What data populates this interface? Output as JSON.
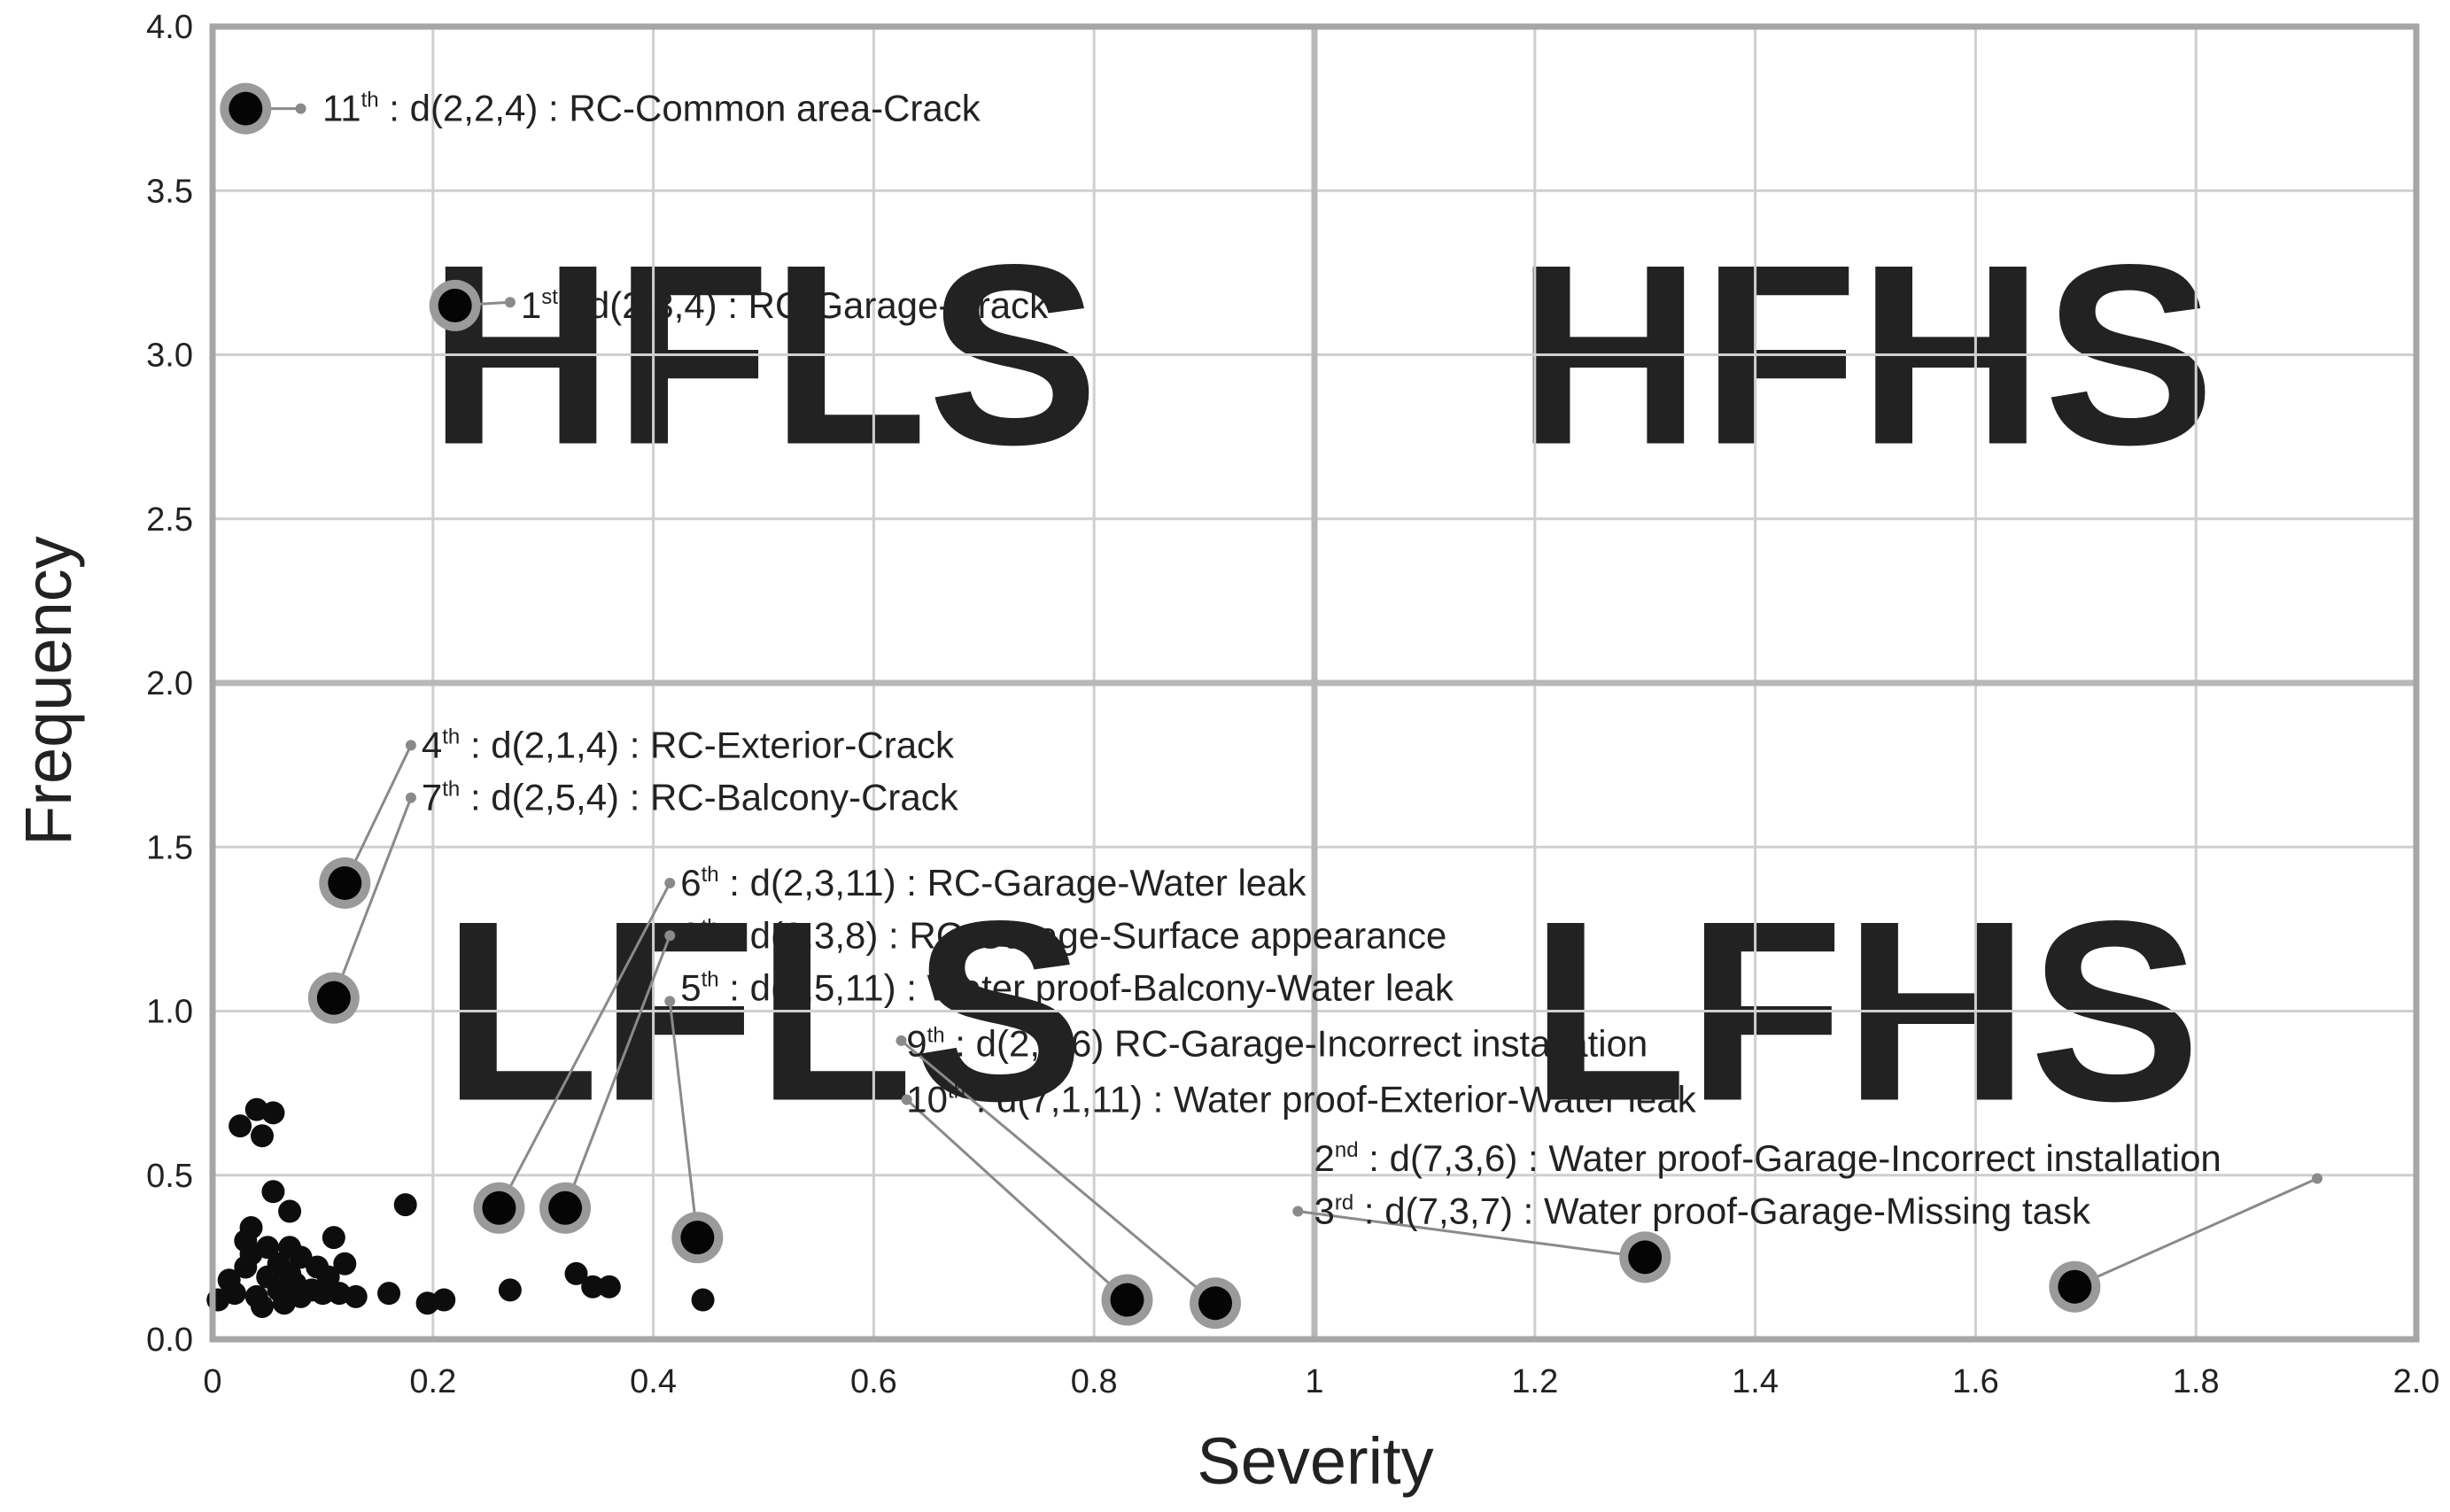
{
  "chart_data": {
    "type": "scatter",
    "xlabel": "Severity",
    "ylabel": "Frequency",
    "xlim": [
      0,
      2.0
    ],
    "ylim": [
      0,
      4.0
    ],
    "x_ticks": [
      "0",
      "0.2",
      "0.4",
      "0.6",
      "0.8",
      "1",
      "1.2",
      "1.4",
      "1.6",
      "1.8",
      "2.0"
    ],
    "y_ticks": [
      "0.0",
      "0.5",
      "1.0",
      "1.5",
      "2.0",
      "2.5",
      "3.0",
      "3.5",
      "4.0"
    ],
    "grid": true,
    "divider_x": 1.0,
    "divider_y": 2.0,
    "quadrant_labels": [
      {
        "text": "HFLS",
        "x": 0.5,
        "y": 3.0
      },
      {
        "text": "HFHS",
        "x": 1.5,
        "y": 3.0
      },
      {
        "text": "LFLS",
        "x": 0.5,
        "y": 1.0
      },
      {
        "text": "LFHS",
        "x": 1.5,
        "y": 1.0
      }
    ],
    "highlighted_points": [
      {
        "x": 0.03,
        "y": 3.75,
        "rank": "11",
        "suffix": "th",
        "label": " : d(2,2,4) : RC-Common area-Crack",
        "label_x": 0.09,
        "label_y": 3.75
      },
      {
        "x": 0.22,
        "y": 3.15,
        "rank": "1",
        "suffix": "st",
        "label": " : d(2,3,4) : RC-Garage-Crack",
        "label_x": 0.27,
        "label_y": 3.15
      },
      {
        "x": 0.12,
        "y": 1.39,
        "rank": "4",
        "suffix": "th",
        "label": " : d(2,1,4) : RC-Exterior-Crack",
        "label_x": 0.18,
        "label_y": 1.81
      },
      {
        "x": 0.11,
        "y": 1.04,
        "rank": "7",
        "suffix": "th",
        "label": " : d(2,5,4) : RC-Balcony-Crack",
        "label_x": 0.18,
        "label_y": 1.65
      },
      {
        "x": 0.26,
        "y": 0.4,
        "rank": "6",
        "suffix": "th",
        "label": " : d(2,3,11) : RC-Garage-Water leak",
        "label_x": 0.415,
        "label_y": 1.39
      },
      {
        "x": 0.32,
        "y": 0.4,
        "rank": "8",
        "suffix": "th",
        "label": " : d(2,3,8) : RC-Garage-Surface appearance",
        "label_x": 0.415,
        "label_y": 1.23
      },
      {
        "x": 0.44,
        "y": 0.31,
        "rank": "5",
        "suffix": "th",
        "label": " : d(7,5,11) : Water proof-Balcony-Water leak",
        "label_x": 0.415,
        "label_y": 1.07
      },
      {
        "x": 0.91,
        "y": 0.11,
        "rank": "9",
        "suffix": "th",
        "label": " : d(2,3,6) RC-Garage-Incorrect installation",
        "label_x": 0.62,
        "label_y": 0.9
      },
      {
        "x": 0.83,
        "y": 0.12,
        "rank": "10",
        "suffix": "th",
        "label": " : d(7,1,11) : Water proof-Exterior-Water leak",
        "label_x": 0.62,
        "label_y": 0.73
      },
      {
        "x": 1.69,
        "y": 0.16,
        "rank": "2",
        "suffix": "nd",
        "label": " : d(7,3,6) : Water proof-Garage-Incorrect installation",
        "label_x": 0.99,
        "label_y": 0.55
      },
      {
        "x": 1.3,
        "y": 0.25,
        "rank": "3",
        "suffix": "rd",
        "label": " : d(7,3,7) : Water proof-Garage-Missing task",
        "label_x": 0.99,
        "label_y": 0.39
      }
    ],
    "highlighted_leader_ends": [
      {
        "x": 0.08,
        "y": 3.75
      },
      {
        "x": 0.27,
        "y": 3.16
      },
      {
        "x": 0.18,
        "y": 1.81
      },
      {
        "x": 0.18,
        "y": 1.65
      },
      {
        "x": 0.415,
        "y": 1.39
      },
      {
        "x": 0.415,
        "y": 1.23
      },
      {
        "x": 0.415,
        "y": 1.03
      },
      {
        "x": 0.625,
        "y": 0.91
      },
      {
        "x": 0.63,
        "y": 0.73
      },
      {
        "x": 1.91,
        "y": 0.49
      },
      {
        "x": 0.985,
        "y": 0.39
      }
    ],
    "other_points": [
      {
        "x": 0.005,
        "y": 0.12
      },
      {
        "x": 0.015,
        "y": 0.18
      },
      {
        "x": 0.02,
        "y": 0.14
      },
      {
        "x": 0.025,
        "y": 0.65
      },
      {
        "x": 0.03,
        "y": 0.3
      },
      {
        "x": 0.03,
        "y": 0.22
      },
      {
        "x": 0.035,
        "y": 0.26
      },
      {
        "x": 0.035,
        "y": 0.34
      },
      {
        "x": 0.04,
        "y": 0.13
      },
      {
        "x": 0.04,
        "y": 0.7
      },
      {
        "x": 0.045,
        "y": 0.62
      },
      {
        "x": 0.045,
        "y": 0.1
      },
      {
        "x": 0.05,
        "y": 0.19
      },
      {
        "x": 0.05,
        "y": 0.28
      },
      {
        "x": 0.055,
        "y": 0.69
      },
      {
        "x": 0.055,
        "y": 0.45
      },
      {
        "x": 0.06,
        "y": 0.15
      },
      {
        "x": 0.06,
        "y": 0.23
      },
      {
        "x": 0.065,
        "y": 0.11
      },
      {
        "x": 0.07,
        "y": 0.2
      },
      {
        "x": 0.07,
        "y": 0.28
      },
      {
        "x": 0.075,
        "y": 0.17
      },
      {
        "x": 0.08,
        "y": 0.13
      },
      {
        "x": 0.08,
        "y": 0.25
      },
      {
        "x": 0.07,
        "y": 0.39
      },
      {
        "x": 0.09,
        "y": 0.15
      },
      {
        "x": 0.095,
        "y": 0.22
      },
      {
        "x": 0.1,
        "y": 0.14
      },
      {
        "x": 0.105,
        "y": 0.19
      },
      {
        "x": 0.11,
        "y": 0.31
      },
      {
        "x": 0.115,
        "y": 0.14
      },
      {
        "x": 0.12,
        "y": 0.23
      },
      {
        "x": 0.13,
        "y": 0.13
      },
      {
        "x": 0.16,
        "y": 0.14
      },
      {
        "x": 0.175,
        "y": 0.41
      },
      {
        "x": 0.195,
        "y": 0.11
      },
      {
        "x": 0.21,
        "y": 0.12
      },
      {
        "x": 0.27,
        "y": 0.15
      },
      {
        "x": 0.33,
        "y": 0.2
      },
      {
        "x": 0.345,
        "y": 0.16
      },
      {
        "x": 0.36,
        "y": 0.16
      },
      {
        "x": 0.445,
        "y": 0.12
      }
    ]
  }
}
